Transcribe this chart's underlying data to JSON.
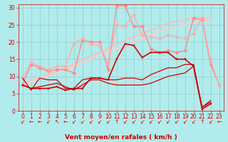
{
  "bg_color": "#b2ebeb",
  "grid_color": "#8ecfcf",
  "xlabel": "Vent moyen/en rafales ( km/h )",
  "xlabel_color": "#cc0000",
  "xlim": [
    -0.5,
    23.5
  ],
  "ylim": [
    0,
    31
  ],
  "yticks": [
    0,
    5,
    10,
    15,
    20,
    25,
    30
  ],
  "xticks": [
    0,
    1,
    2,
    3,
    4,
    5,
    6,
    7,
    8,
    9,
    10,
    11,
    12,
    13,
    14,
    15,
    16,
    17,
    18,
    19,
    20,
    21,
    22,
    23
  ],
  "lines": [
    {
      "x": [
        0,
        1,
        2,
        3,
        4,
        5,
        6,
        7,
        8,
        9,
        10,
        11,
        12,
        13,
        14,
        15,
        16,
        17,
        18,
        19,
        20,
        21,
        22
      ],
      "y": [
        7.5,
        6.5,
        6.5,
        6.5,
        7.0,
        6.0,
        6.5,
        6.5,
        9.5,
        9.5,
        9.0,
        15.0,
        19.5,
        19.0,
        15.5,
        17.0,
        17.0,
        17.0,
        15.0,
        15.0,
        13.0,
        0.5,
        2.0
      ],
      "color": "#cc0000",
      "marker": "s",
      "markersize": 2.0,
      "linewidth": 1.2,
      "alpha": 1.0,
      "zorder": 4
    },
    {
      "x": [
        0,
        1,
        2,
        3,
        4,
        5,
        6,
        7,
        8,
        9,
        10,
        11,
        12,
        13,
        14,
        15,
        16,
        17,
        18,
        19,
        20,
        21,
        22
      ],
      "y": [
        7.5,
        6.5,
        7.0,
        7.5,
        8.0,
        7.0,
        6.0,
        7.5,
        9.0,
        9.0,
        8.0,
        7.5,
        7.5,
        7.5,
        7.5,
        8.0,
        9.0,
        10.0,
        10.5,
        11.0,
        13.0,
        1.0,
        3.0
      ],
      "color": "#cc0000",
      "marker": null,
      "markersize": 0,
      "linewidth": 0.9,
      "alpha": 1.0,
      "zorder": 3
    },
    {
      "x": [
        0,
        1,
        2,
        3,
        4,
        5,
        6,
        7,
        8,
        9,
        10,
        11,
        12,
        13,
        14,
        15,
        16,
        17,
        18,
        19,
        20,
        21,
        22
      ],
      "y": [
        9.5,
        6.0,
        9.5,
        9.0,
        9.0,
        6.5,
        6.5,
        9.0,
        9.5,
        9.5,
        9.0,
        9.0,
        9.5,
        9.5,
        9.0,
        10.5,
        11.5,
        12.5,
        12.5,
        13.5,
        13.5,
        1.0,
        2.5
      ],
      "color": "#cc0000",
      "marker": null,
      "markersize": 0,
      "linewidth": 0.9,
      "alpha": 1.0,
      "zorder": 3
    },
    {
      "x": [
        0,
        1,
        2,
        3,
        4,
        5,
        6,
        7,
        8,
        9,
        10,
        11,
        12,
        13,
        14,
        15,
        16,
        17,
        18,
        19,
        20,
        21,
        22,
        23
      ],
      "y": [
        7.5,
        13.5,
        12.5,
        11.5,
        12.0,
        12.0,
        11.0,
        20.5,
        20.0,
        20.0,
        12.0,
        30.5,
        30.5,
        24.5,
        24.5,
        18.0,
        17.0,
        17.5,
        17.0,
        17.5,
        27.0,
        26.5,
        13.5,
        7.5
      ],
      "color": "#ff8888",
      "marker": "D",
      "markersize": 2.5,
      "linewidth": 1.0,
      "alpha": 1.0,
      "zorder": 2
    },
    {
      "x": [
        0,
        1,
        2,
        3,
        4,
        5,
        6,
        7,
        8,
        9,
        10,
        11,
        12,
        13,
        14,
        15,
        16,
        17,
        18,
        19,
        20,
        21,
        22,
        23
      ],
      "y": [
        9.5,
        14.0,
        13.0,
        12.0,
        13.0,
        13.0,
        19.5,
        21.0,
        19.5,
        19.0,
        14.0,
        25.0,
        24.5,
        28.0,
        22.0,
        21.5,
        21.0,
        22.0,
        21.5,
        21.0,
        22.5,
        27.0,
        14.5,
        7.5
      ],
      "color": "#ffaaaa",
      "marker": "D",
      "markersize": 2.5,
      "linewidth": 1.0,
      "alpha": 1.0,
      "zorder": 2
    },
    {
      "x": [
        0,
        1,
        2,
        3,
        4,
        5,
        6,
        7,
        8,
        9,
        10,
        11,
        12,
        13,
        14,
        15,
        16,
        17,
        18,
        19,
        20,
        21,
        22
      ],
      "y": [
        7.5,
        9.0,
        9.5,
        10.5,
        11.5,
        12.5,
        13.5,
        15.0,
        16.0,
        17.0,
        18.0,
        19.5,
        20.5,
        21.5,
        22.5,
        23.5,
        24.5,
        25.5,
        26.0,
        26.5,
        27.0,
        27.0,
        27.0
      ],
      "color": "#ffbbbb",
      "marker": null,
      "markersize": 0,
      "linewidth": 1.3,
      "alpha": 1.0,
      "zorder": 1
    },
    {
      "x": [
        0,
        1,
        2,
        3,
        4,
        5,
        6,
        7,
        8,
        9,
        10,
        11,
        12,
        13,
        14,
        15,
        16,
        17,
        18,
        19,
        20,
        21,
        22
      ],
      "y": [
        7.5,
        8.5,
        9.5,
        10.0,
        11.0,
        12.0,
        13.0,
        14.0,
        15.0,
        16.0,
        17.0,
        18.0,
        19.0,
        20.0,
        21.0,
        22.0,
        23.0,
        24.0,
        24.5,
        25.0,
        25.5,
        26.0,
        26.5
      ],
      "color": "#ffcccc",
      "marker": null,
      "markersize": 0,
      "linewidth": 1.3,
      "alpha": 1.0,
      "zorder": 1
    }
  ],
  "tick_label_color": "#cc0000",
  "tick_label_fontsize": 5.5,
  "ylabel_fontsize": 5.5,
  "xlabel_fontsize": 6.5
}
